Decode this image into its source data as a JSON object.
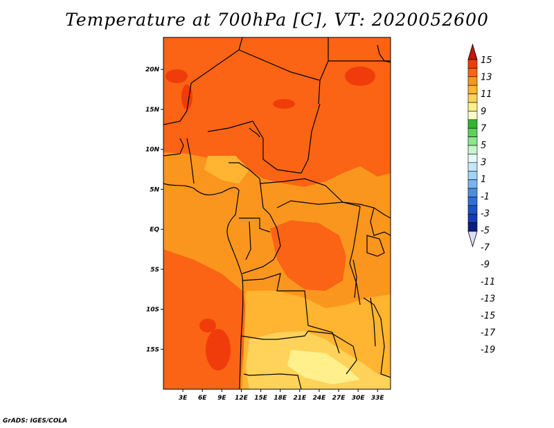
{
  "title": "Temperature at 700hPa [C], VT: 2020052600",
  "credit": "GrADS: IGES/COLA",
  "map": {
    "lon_range": [
      0,
      35
    ],
    "lat_range": [
      -20,
      24
    ],
    "lat_ticks": [
      {
        "value": 20,
        "label": "20N"
      },
      {
        "value": 15,
        "label": "15N"
      },
      {
        "value": 10,
        "label": "10N"
      },
      {
        "value": 5,
        "label": "5N"
      },
      {
        "value": 0,
        "label": "EQ"
      },
      {
        "value": -5,
        "label": "5S"
      },
      {
        "value": -10,
        "label": "10S"
      },
      {
        "value": -15,
        "label": "15S"
      }
    ],
    "lon_ticks": [
      {
        "value": 3,
        "label": "3E"
      },
      {
        "value": 6,
        "label": "6E"
      },
      {
        "value": 9,
        "label": "9E"
      },
      {
        "value": 12,
        "label": "12E"
      },
      {
        "value": 15,
        "label": "15E"
      },
      {
        "value": 18,
        "label": "18E"
      },
      {
        "value": 21,
        "label": "21E"
      },
      {
        "value": 24,
        "label": "24E"
      },
      {
        "value": 27,
        "label": "27E"
      },
      {
        "value": 30,
        "label": "30E"
      },
      {
        "value": 33,
        "label": "33E"
      }
    ]
  },
  "colorbar": {
    "labels": [
      "15",
      "13",
      "11",
      "9",
      "7",
      "5",
      "3",
      "1",
      "-1",
      "-3",
      "-5",
      "-7",
      "-9",
      "-11",
      "-13",
      "-15",
      "-17",
      "-19"
    ],
    "colors": [
      "#c8140a",
      "#f03c0a",
      "#fa6414",
      "#fa961e",
      "#ffb432",
      "#ffd25a",
      "#fff08c",
      "#fffac8",
      "#32b432",
      "#5ad25a",
      "#8ce68c",
      "#c8f5c8",
      "#e6fafa",
      "#c8e6fa",
      "#a0d2fa",
      "#78b4f0",
      "#508cdc",
      "#326edc",
      "#1e50c8",
      "#143cb4",
      "#0a1e82",
      "#dcdcfa"
    ]
  }
}
